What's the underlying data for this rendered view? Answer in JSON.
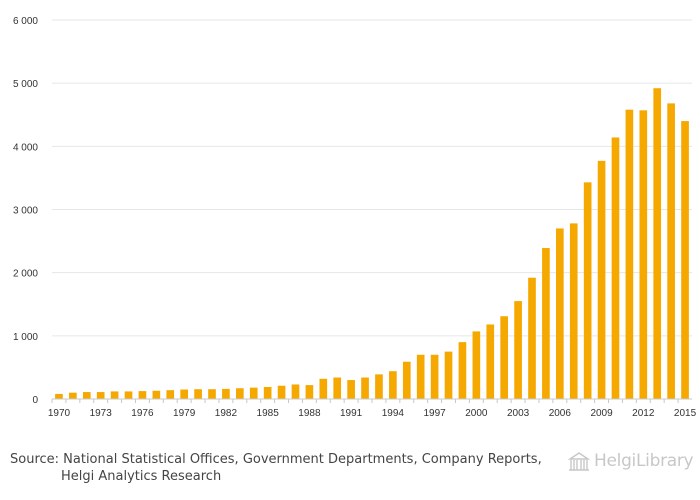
{
  "chart_data": {
    "type": "bar",
    "title": "",
    "xlabel": "",
    "ylabel": "",
    "ylim": [
      0,
      6000
    ],
    "y_ticks": [
      0,
      1000,
      2000,
      3000,
      4000,
      5000,
      6000
    ],
    "y_tick_labels": [
      "0",
      "1 000",
      "2 000",
      "3 000",
      "4 000",
      "5 000",
      "6 000"
    ],
    "categories": [
      "1970",
      "1971",
      "1972",
      "1973",
      "1974",
      "1975",
      "1976",
      "1977",
      "1978",
      "1979",
      "1980",
      "1981",
      "1982",
      "1983",
      "1984",
      "1985",
      "1986",
      "1987",
      "1988",
      "1989",
      "1990",
      "1991",
      "1992",
      "1993",
      "1994",
      "1995",
      "1996",
      "1997",
      "1998",
      "1999",
      "2000",
      "2001",
      "2002",
      "2003",
      "2004",
      "2005",
      "2006",
      "2007",
      "2008",
      "2009",
      "2010",
      "2011",
      "2012",
      "2013",
      "2014",
      "2015"
    ],
    "x_tick_labels": [
      "1970",
      "1973",
      "1976",
      "1979",
      "1982",
      "1985",
      "1988",
      "1991",
      "1994",
      "1997",
      "2000",
      "2003",
      "2006",
      "2009",
      "2012",
      "2015"
    ],
    "values": [
      80,
      100,
      110,
      110,
      120,
      120,
      125,
      130,
      140,
      150,
      155,
      155,
      160,
      170,
      180,
      190,
      210,
      230,
      220,
      320,
      340,
      300,
      340,
      390,
      440,
      590,
      700,
      700,
      750,
      900,
      1070,
      1180,
      1310,
      1550,
      1920,
      2390,
      2700,
      2780,
      3430,
      3770,
      4140,
      4580,
      4570,
      4920,
      4680,
      4400
    ],
    "bar_color": "#f5a800",
    "grid_color": "#e6e6e6",
    "grid": true,
    "legend": "none"
  },
  "footer": {
    "source_line1": "Source: National Statistical Offices, Government Departments, Company Reports,",
    "source_line2": "Helgi Analytics Research",
    "logo_text": "HelgiLibrary"
  }
}
